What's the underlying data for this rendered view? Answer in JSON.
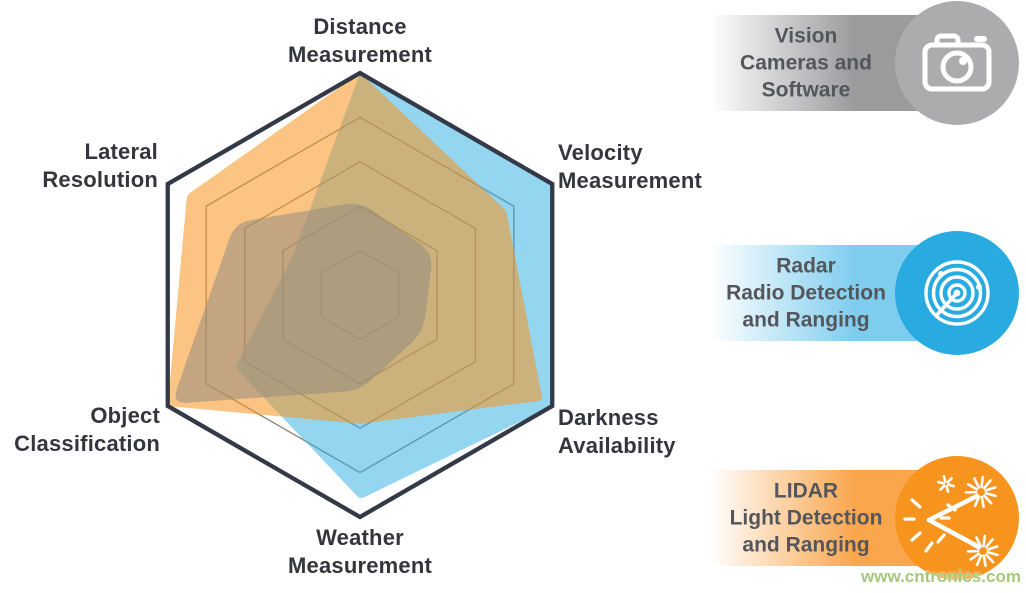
{
  "page": {
    "watermark": "www.cntronics.com",
    "background": "#FFFFFF"
  },
  "chart_data": {
    "type": "radar",
    "title": "",
    "axes": [
      {
        "id": "distance",
        "label": "Distance Measurement",
        "lines": [
          "Distance",
          "Measurement"
        ]
      },
      {
        "id": "velocity",
        "label": "Velocity Measurement",
        "lines": [
          "Velocity",
          "Measurement"
        ]
      },
      {
        "id": "darkness",
        "label": "Darkness Availability",
        "lines": [
          "Darkness",
          "Availability"
        ]
      },
      {
        "id": "weather",
        "label": "Weather Measurement",
        "lines": [
          "Weather",
          "Measurement"
        ]
      },
      {
        "id": "object",
        "label": "Object Classification",
        "lines": [
          "Object",
          "Classification"
        ]
      },
      {
        "id": "lateral",
        "label": "Lateral Resolution",
        "lines": [
          "Lateral",
          "Resolution"
        ]
      }
    ],
    "scale": {
      "min": 0,
      "max": 100,
      "rings_pct": [
        20,
        40,
        60,
        80
      ],
      "outer_pct": 100,
      "gridlines": true,
      "spokes": false
    },
    "series": [
      {
        "name": "Radar (Radio Detection and Ranging)",
        "values": {
          "distance": 100,
          "velocity": 100,
          "darkness": 100,
          "weather": 92,
          "object": 65,
          "lateral": 35
        },
        "fill": "rgba(41,171,226,0.50)",
        "corner_radius": 4
      },
      {
        "name": "LIDAR (Light Detection and Ranging)",
        "values": {
          "distance": 100,
          "velocity": 76,
          "darkness": 95,
          "weather": 58,
          "object": 100,
          "lateral": 90
        },
        "fill": "rgba(247,148,30,0.55)",
        "corner_radius": 4
      },
      {
        "name": "Vision (Cameras and Software)",
        "values": {
          "distance": 42,
          "velocity": 38,
          "darkness": 33,
          "weather": 43,
          "object": 98,
          "lateral": 65
        },
        "fill": "rgba(150,140,128,0.55)",
        "corner_radius": 16
      }
    ],
    "geometry": {
      "center_x": 360,
      "center_y": 295,
      "radius": 222
    },
    "grid_color": "#7E7365",
    "outline_color": "#333947",
    "legend_position": "right"
  },
  "legend": {
    "items": [
      {
        "id": "vision",
        "lines": [
          "Vision",
          "Cameras and",
          "Software"
        ],
        "bar_color": "#9B9B9E",
        "circle_color": "#ACACAE",
        "icon": "camera"
      },
      {
        "id": "radar",
        "lines": [
          "Radar",
          "Radio Detection",
          "and Ranging"
        ],
        "bar_color": "#7FCDEE",
        "circle_color": "#29ABE2",
        "icon": "radar-sweep"
      },
      {
        "id": "lidar",
        "lines": [
          "LIDAR",
          "Light Detection",
          "and Ranging"
        ],
        "bar_color": "#F9A64C",
        "circle_color": "#F7941E",
        "icon": "laser"
      }
    ]
  }
}
